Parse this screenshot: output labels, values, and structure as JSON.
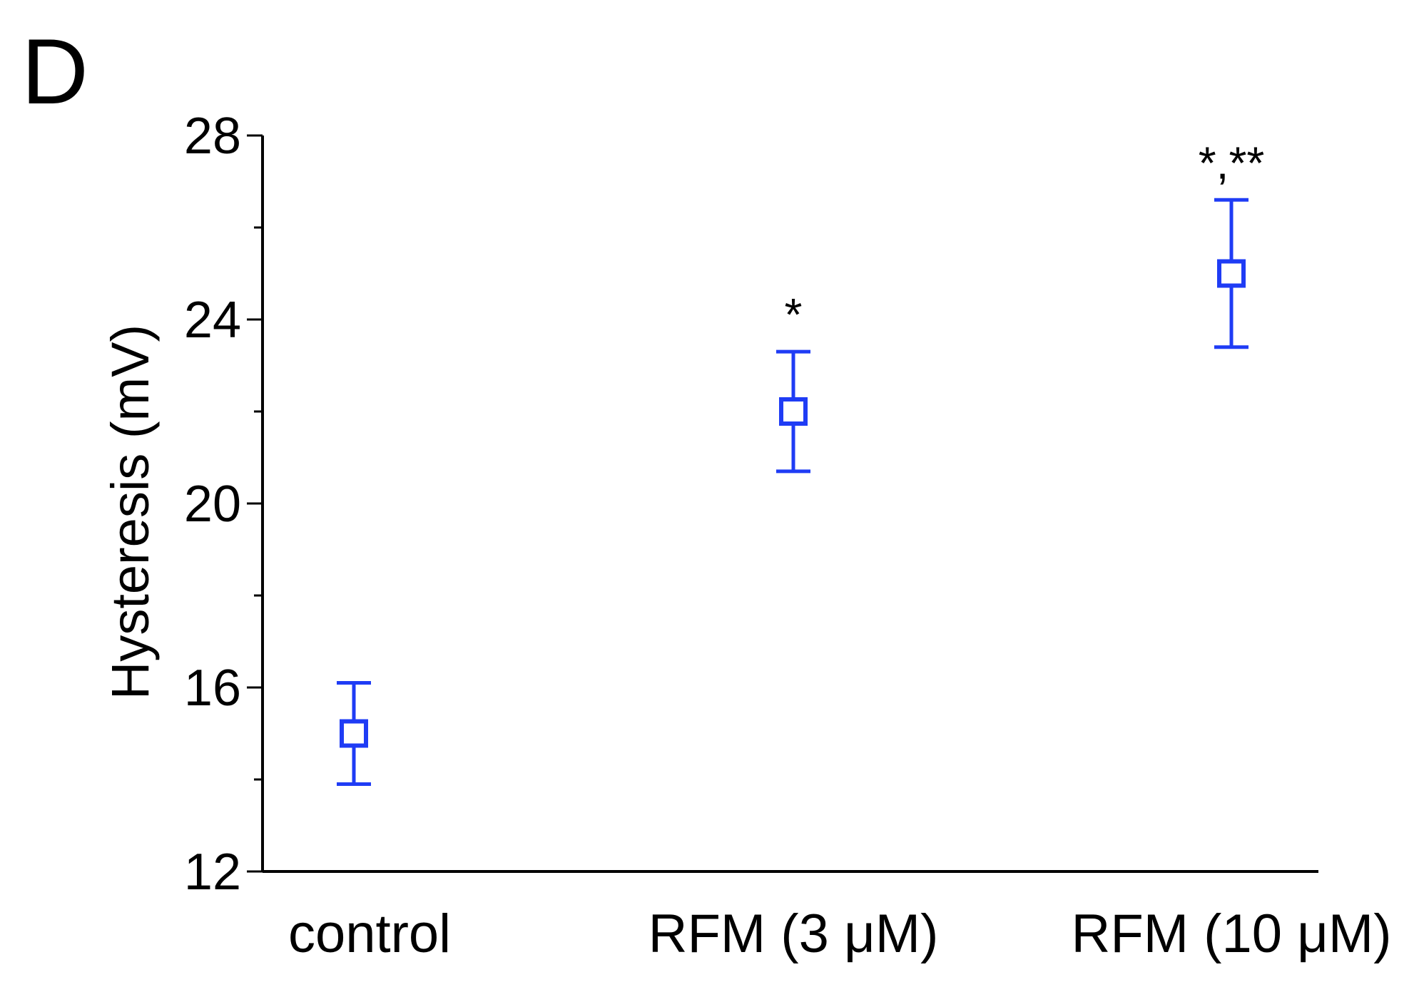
{
  "panel_label": "D",
  "chart_data": {
    "type": "scatter",
    "categories": [
      "control",
      "RFM (3 μM)",
      "RFM (10 μM)"
    ],
    "values": [
      15.0,
      22.0,
      25.0
    ],
    "error_upper": [
      16.1,
      23.3,
      26.6
    ],
    "error_lower": [
      13.9,
      20.7,
      23.4
    ],
    "annotations": [
      "",
      "*",
      "*,**"
    ],
    "ylabel": "Hysteresis (mV)",
    "ylim": [
      12,
      28
    ],
    "yticks": [
      12,
      16,
      20,
      24,
      28
    ],
    "yticks_minor": [
      14,
      18,
      22,
      26
    ],
    "color": "#1f3cf5",
    "marker": "open-square",
    "grid": false
  }
}
